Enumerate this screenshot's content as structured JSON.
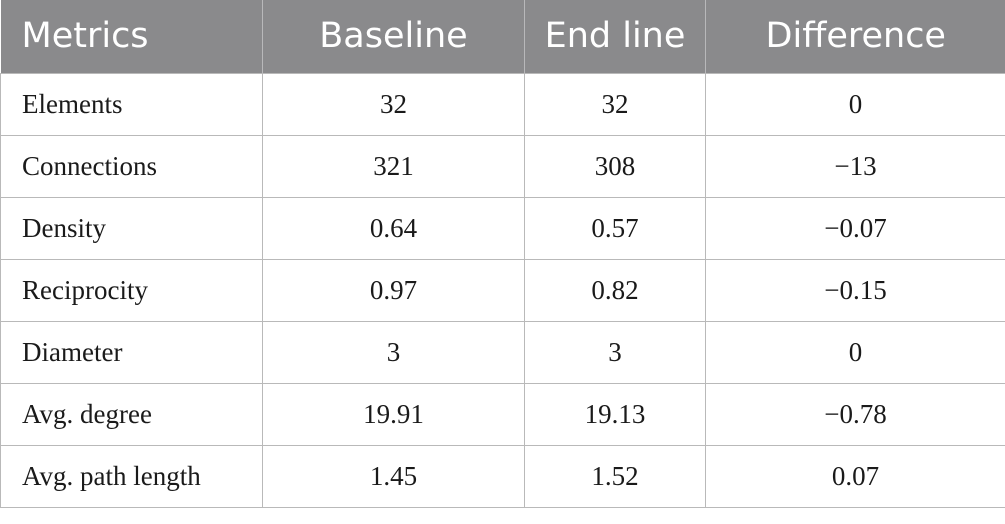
{
  "table": {
    "headers": [
      "Metrics",
      "Baseline",
      "End line",
      "Difference"
    ],
    "rows": [
      [
        "Elements",
        "32",
        "32",
        "0"
      ],
      [
        "Connections",
        "321",
        "308",
        "−13"
      ],
      [
        "Density",
        "0.64",
        "0.57",
        "−0.07"
      ],
      [
        "Reciprocity",
        "0.97",
        "0.82",
        "−0.15"
      ],
      [
        "Diameter",
        "3",
        "3",
        "0"
      ],
      [
        "Avg. degree",
        "19.91",
        "19.13",
        "−0.78"
      ],
      [
        "Avg. path length",
        "1.45",
        "1.52",
        "0.07"
      ]
    ]
  },
  "colors": {
    "header_background": "#8a8a8c",
    "header_text": "#ffffff",
    "grid_line": "#b9b9b9"
  }
}
